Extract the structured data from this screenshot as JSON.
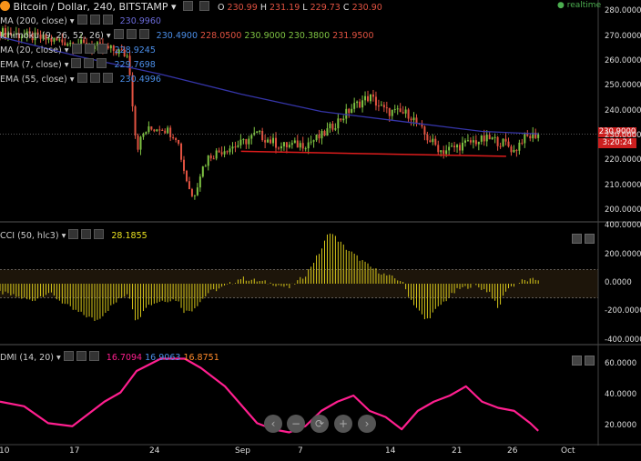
{
  "header": {
    "title": "Bitcoin / Dollar, 240, BITSTAMP",
    "open_label": "O",
    "open": "230.99",
    "high_label": "H",
    "high": "231.19",
    "low_label": "L",
    "low": "229.73",
    "close_label": "C",
    "close": "230.90",
    "realtime": "realtime"
  },
  "indicators": [
    {
      "name": "MA (200, close)",
      "value": "230.9960"
    },
    {
      "name": "Ichimoku (9, 26, 52, 26)",
      "values": [
        "230.4900",
        "228.0500",
        "230.9000",
        "230.3800",
        "231.9500"
      ]
    },
    {
      "name": "MA (20, close)",
      "value": "228.9245"
    },
    {
      "name": "EMA (7, close)",
      "value": "229.7698"
    },
    {
      "name": "EMA (55, close)",
      "value": "230.4996"
    }
  ],
  "cci": {
    "name": "CCI (50, hlc3)",
    "value": "28.1855"
  },
  "dmi": {
    "name": "DMI (14, 20)",
    "values": [
      "16.7094",
      "16.9063",
      "16.8751"
    ]
  },
  "price_box": {
    "price": "230.9000",
    "timer": "3:20:24"
  },
  "colors": {
    "up": "#7ec242",
    "down": "#e15241",
    "cci": "#d8c81a",
    "dmi": "#ff1f8f",
    "ma200": "#3535a8",
    "support": "#dd1c1c",
    "accent": "#cc2020"
  },
  "icons": [
    "zoom-out-icon",
    "zoom-in-icon",
    "reset-icon",
    "scroll-left-icon",
    "scroll-right-icon"
  ],
  "chart_data": [
    {
      "type": "candlestick",
      "title": "Bitcoin / Dollar, 240, BITSTAMP",
      "x_tick_labels": [
        "10",
        "17",
        "24",
        "Sep",
        "7",
        "14",
        "21",
        "26",
        "Oct"
      ],
      "y_tick_labels": [
        "280.0000",
        "270.0000",
        "260.0000",
        "250.0000",
        "240.0000",
        "230.0000",
        "220.0000",
        "210.0000",
        "200.0000"
      ],
      "ylim": [
        196,
        283
      ],
      "candles_hint": "4-hour candles from ~Aug 10 to Sep 23",
      "close_path": [
        [
          0,
          272
        ],
        [
          8,
          268
        ],
        [
          12,
          266
        ],
        [
          15,
          264
        ],
        [
          16,
          262
        ],
        [
          17,
          225
        ],
        [
          18,
          232
        ],
        [
          20,
          234
        ],
        [
          22,
          230
        ],
        [
          23,
          215
        ],
        [
          24,
          205
        ],
        [
          25,
          216
        ],
        [
          26,
          222
        ],
        [
          28,
          225
        ],
        [
          30,
          227
        ],
        [
          32,
          231
        ],
        [
          35,
          226
        ],
        [
          38,
          227
        ],
        [
          40,
          230
        ],
        [
          42,
          236
        ],
        [
          44,
          242
        ],
        [
          46,
          246
        ],
        [
          48,
          240
        ],
        [
          51,
          239
        ],
        [
          53,
          230
        ],
        [
          55,
          224
        ],
        [
          57,
          226
        ],
        [
          59,
          228
        ],
        [
          61,
          229
        ],
        [
          63,
          227
        ],
        [
          64,
          224
        ],
        [
          65,
          229
        ],
        [
          67,
          231
        ]
      ],
      "ma200_path": [
        [
          0,
          270
        ],
        [
          10,
          262
        ],
        [
          20,
          255
        ],
        [
          30,
          247
        ],
        [
          40,
          240
        ],
        [
          50,
          236
        ],
        [
          60,
          232
        ],
        [
          67,
          231
        ]
      ],
      "support_line": [
        [
          30,
          224
        ],
        [
          63,
          222
        ]
      ],
      "last_price": 230.9
    },
    {
      "type": "bar",
      "title": "CCI (50, hlc3)",
      "y_tick_labels": [
        "400.0000",
        "200.0000",
        "0.0000",
        "-200.0000",
        "-400.0000"
      ],
      "ylim": [
        -420,
        420
      ],
      "bands": [
        100,
        -100
      ],
      "path": [
        [
          0,
          -60
        ],
        [
          4,
          -120
        ],
        [
          6,
          -60
        ],
        [
          9,
          -180
        ],
        [
          12,
          -260
        ],
        [
          14,
          -150
        ],
        [
          16,
          -60
        ],
        [
          17,
          -280
        ],
        [
          18,
          -160
        ],
        [
          20,
          -120
        ],
        [
          22,
          -110
        ],
        [
          23,
          -200
        ],
        [
          24,
          -180
        ],
        [
          26,
          -60
        ],
        [
          28,
          -20
        ],
        [
          30,
          40
        ],
        [
          32,
          20
        ],
        [
          34,
          0
        ],
        [
          36,
          -30
        ],
        [
          38,
          60
        ],
        [
          40,
          240
        ],
        [
          41,
          370
        ],
        [
          43,
          250
        ],
        [
          46,
          120
        ],
        [
          48,
          60
        ],
        [
          50,
          20
        ],
        [
          51,
          -100
        ],
        [
          53,
          -260
        ],
        [
          55,
          -140
        ],
        [
          57,
          -40
        ],
        [
          59,
          -10
        ],
        [
          61,
          -60
        ],
        [
          62,
          -180
        ],
        [
          63,
          -40
        ],
        [
          65,
          20
        ],
        [
          67,
          30
        ]
      ]
    },
    {
      "type": "line",
      "title": "DMI (14, 20)",
      "y_tick_labels": [
        "60.0000",
        "40.0000",
        "20.0000"
      ],
      "ylim": [
        8,
        72
      ],
      "series": [
        {
          "values": [
            [
              0,
              36
            ],
            [
              3,
              33
            ],
            [
              6,
              22
            ],
            [
              9,
              20
            ],
            [
              11,
              28
            ],
            [
              13,
              36
            ],
            [
              15,
              42
            ],
            [
              17,
              56
            ],
            [
              20,
              64
            ],
            [
              23,
              64
            ],
            [
              25,
              58
            ],
            [
              28,
              46
            ],
            [
              30,
              34
            ],
            [
              32,
              22
            ],
            [
              34,
              18
            ],
            [
              36,
              16
            ],
            [
              38,
              20
            ],
            [
              40,
              30
            ],
            [
              42,
              36
            ],
            [
              44,
              40
            ],
            [
              46,
              30
            ],
            [
              48,
              26
            ],
            [
              50,
              18
            ],
            [
              52,
              30
            ],
            [
              54,
              36
            ],
            [
              56,
              40
            ],
            [
              58,
              46
            ],
            [
              60,
              36
            ],
            [
              62,
              32
            ],
            [
              64,
              30
            ],
            [
              66,
              22
            ],
            [
              67,
              17
            ]
          ]
        }
      ]
    }
  ]
}
